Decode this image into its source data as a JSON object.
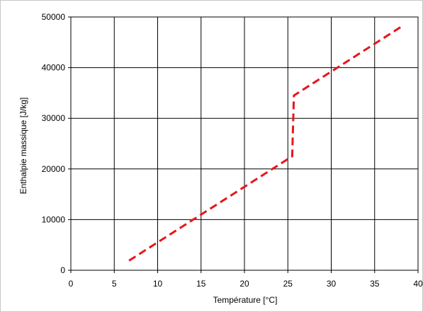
{
  "chart_data": {
    "type": "line",
    "title": "",
    "xlabel": "Température [°C]",
    "ylabel": "Enthalpie massique [J/kg]",
    "xlim": [
      0,
      40
    ],
    "ylim": [
      0,
      50000
    ],
    "x_ticks": [
      "0",
      "5",
      "10",
      "15",
      "20",
      "25",
      "30",
      "35",
      "40"
    ],
    "y_ticks": [
      "0",
      "10000",
      "20000",
      "30000",
      "40000",
      "50000"
    ],
    "grid": true,
    "legend": "none",
    "series": [
      {
        "color": "#e8151b",
        "style": "dashed",
        "x": [
          6.7,
          25.5,
          25.6,
          25.7,
          38.0
        ],
        "y": [
          1900,
          22500,
          28500,
          34500,
          48000
        ]
      }
    ]
  }
}
